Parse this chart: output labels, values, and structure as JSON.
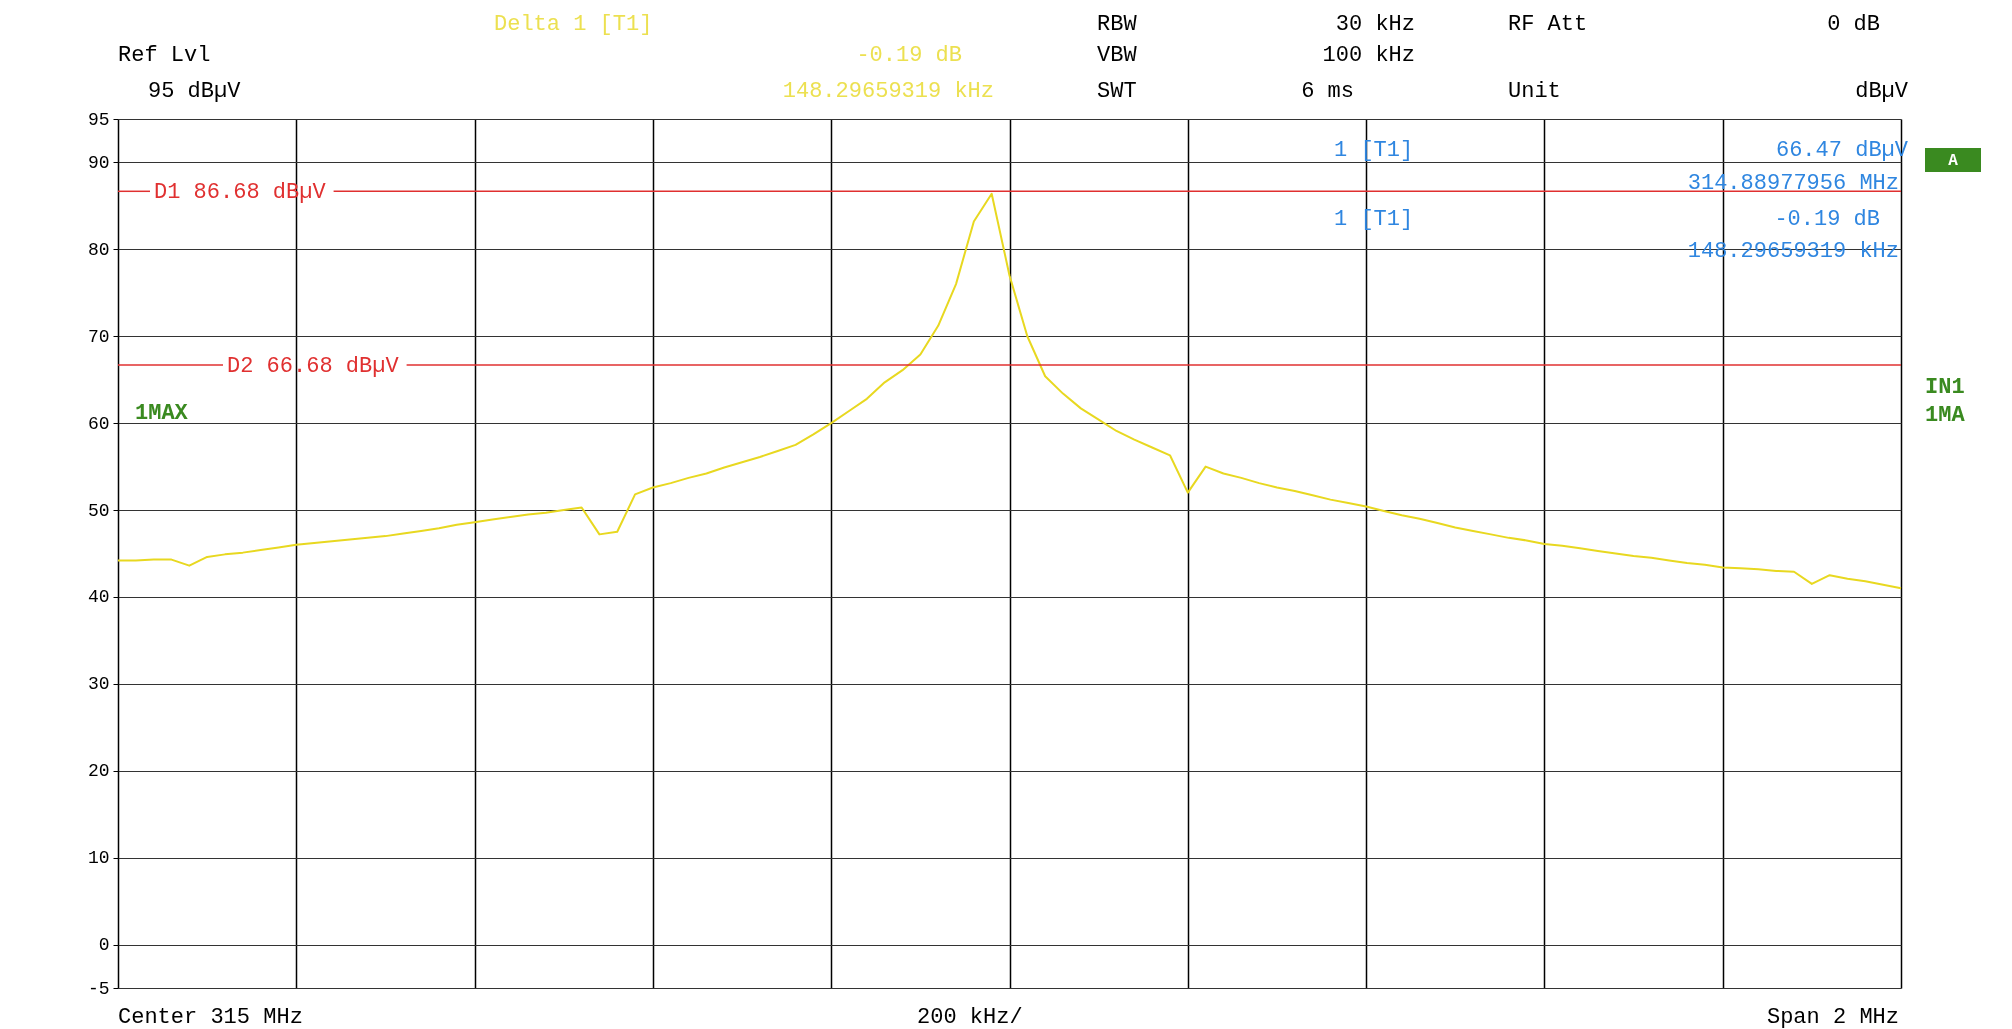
{
  "chart_data": {
    "type": "line",
    "categories": [
      null,
      null,
      null,
      null,
      null,
      null,
      null,
      null,
      null,
      null,
      null,
      null,
      null,
      null,
      null,
      null,
      null,
      null,
      null,
      null,
      null,
      null,
      null,
      null,
      null,
      null,
      null,
      null,
      null,
      null,
      null,
      null,
      null,
      null,
      null,
      null,
      null,
      null,
      null,
      null,
      null,
      null,
      null,
      null,
      null,
      null,
      null,
      null,
      null,
      null,
      null,
      null,
      null,
      null,
      null,
      null,
      null,
      null,
      null,
      null,
      null,
      null,
      null,
      null,
      null,
      null,
      null,
      null,
      null,
      null,
      null,
      null,
      null,
      null,
      null,
      null,
      null,
      null,
      null,
      null,
      null,
      null,
      null,
      null,
      null,
      null,
      null,
      null,
      null,
      null,
      null,
      null,
      null,
      null,
      null,
      null,
      null,
      null,
      null,
      null,
      null
    ],
    "ylim": [
      -5,
      95
    ],
    "yticks": [
      -5,
      0,
      10,
      20,
      30,
      40,
      50,
      60,
      70,
      80,
      90,
      95
    ],
    "grid": true,
    "tick_labels": "y",
    "series": [
      {
        "color": "#e8d820",
        "values": [
          44.2,
          44.2,
          44.3,
          44.3,
          43.6,
          44.6,
          44.9,
          45.1,
          45.4,
          45.7,
          46.0,
          46.2,
          46.4,
          46.6,
          46.8,
          47.0,
          47.3,
          47.6,
          47.9,
          48.3,
          48.6,
          48.9,
          49.2,
          49.5,
          49.7,
          50.0,
          50.3,
          47.2,
          47.5,
          51.8,
          52.6,
          53.1,
          53.7,
          54.2,
          54.9,
          55.5,
          56.1,
          56.8,
          57.5,
          58.7,
          60.0,
          61.4,
          62.8,
          64.7,
          66.1,
          67.9,
          71.2,
          76.0,
          83.2,
          86.4,
          77.0,
          70.0,
          65.4,
          63.4,
          61.7,
          60.4,
          59.1,
          58.1,
          57.2,
          56.3,
          52.0,
          55.0,
          54.2,
          53.7,
          53.1,
          52.6,
          52.2,
          51.7,
          51.2,
          50.8,
          50.4,
          49.9,
          49.4,
          49.0,
          48.5,
          48.0,
          47.6,
          47.2,
          46.8,
          46.5,
          46.1,
          45.9,
          45.6,
          45.3,
          45.0,
          44.7,
          44.5,
          44.2,
          43.9,
          43.7,
          43.4,
          43.3,
          43.2,
          43.0,
          42.9,
          41.5,
          42.5,
          42.1,
          41.8,
          41.4,
          41.0
        ]
      }
    ],
    "ref_lines": [
      {
        "axis": "y",
        "value": 86.68,
        "label": "D1 86.68 dBµV",
        "color": "#e03030"
      },
      {
        "axis": "y",
        "value": 66.68,
        "label": "D2 66.68 dBµV",
        "color": "#e03030"
      }
    ],
    "annotations": [
      "Delta 1 [T1]",
      "Ref Lvl",
      "95 dBµV",
      "-0.19 dB",
      "148.29659319 kHz",
      "RBW",
      "30 kHz",
      "VBW",
      "100 kHz",
      "SWT",
      "6 ms",
      "RF Att",
      "0 dB",
      "Unit",
      "dBµV",
      "1 [T1]",
      "66.47 dBµV",
      "314.88977956 MHz",
      "1 [T1]",
      "-0.19 dB",
      "148.29659319 kHz",
      "1MAX",
      "A",
      "IN1",
      "1MA",
      "Center 315 MHz",
      "200 kHz/",
      "Span 2 MHz"
    ]
  }
}
